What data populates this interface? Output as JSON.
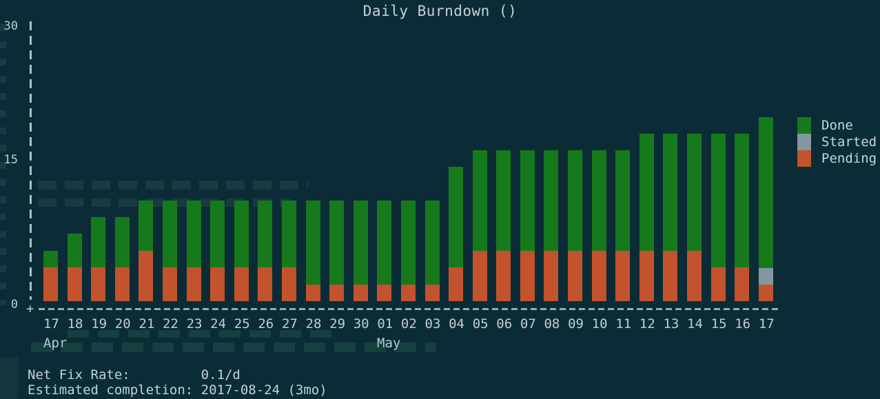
{
  "title": "Daily Burndown ()",
  "colors": {
    "background": "#0b2c36",
    "text": "#c9d6d9",
    "axis": "#c2ced1",
    "done": "#167a1c",
    "started": "#8398a2",
    "pending": "#c2532d"
  },
  "chart_data": {
    "type": "bar",
    "stacked": true,
    "title": "Daily Burndown ()",
    "categories": [
      "17",
      "18",
      "19",
      "20",
      "21",
      "22",
      "23",
      "24",
      "25",
      "26",
      "27",
      "28",
      "29",
      "30",
      "01",
      "02",
      "03",
      "04",
      "05",
      "06",
      "07",
      "08",
      "09",
      "10",
      "11",
      "12",
      "13",
      "14",
      "15",
      "16",
      "17"
    ],
    "month_markers": [
      {
        "index": 0,
        "label": "Apr"
      },
      {
        "index": 14,
        "label": "May"
      }
    ],
    "series": [
      {
        "name": "Done",
        "color_key": "done",
        "values": [
          2,
          4,
          6,
          6,
          6,
          8,
          8,
          8,
          8,
          8,
          8,
          10,
          10,
          10,
          10,
          10,
          10,
          12,
          12,
          12,
          12,
          12,
          12,
          12,
          12,
          14,
          14,
          14,
          16,
          16,
          18
        ]
      },
      {
        "name": "Started",
        "color_key": "started",
        "values": [
          0,
          0,
          0,
          0,
          0,
          0,
          0,
          0,
          0,
          0,
          0,
          0,
          0,
          0,
          0,
          0,
          0,
          0,
          0,
          0,
          0,
          0,
          0,
          0,
          0,
          0,
          0,
          0,
          0,
          0,
          2
        ]
      },
      {
        "name": "Pending",
        "color_key": "pending",
        "values": [
          4,
          4,
          4,
          4,
          6,
          4,
          4,
          4,
          4,
          4,
          4,
          2,
          2,
          2,
          2,
          2,
          2,
          4,
          6,
          6,
          6,
          6,
          6,
          6,
          6,
          6,
          6,
          6,
          4,
          4,
          2
        ]
      }
    ],
    "ylim": [
      0,
      30
    ],
    "yticks": [
      30,
      15,
      0
    ],
    "grid": false,
    "legend_position": "right"
  },
  "legend": [
    {
      "label": "Done",
      "color_key": "done"
    },
    {
      "label": "Started",
      "color_key": "started"
    },
    {
      "label": "Pending",
      "color_key": "pending"
    }
  ],
  "axis": {
    "origin_glyph": "+"
  },
  "footer": {
    "rows": [
      {
        "label": "Net Fix Rate:",
        "value": "0.1/d"
      },
      {
        "label": "Estimated completion:",
        "value": "2017-08-24 (3mo)"
      }
    ]
  }
}
